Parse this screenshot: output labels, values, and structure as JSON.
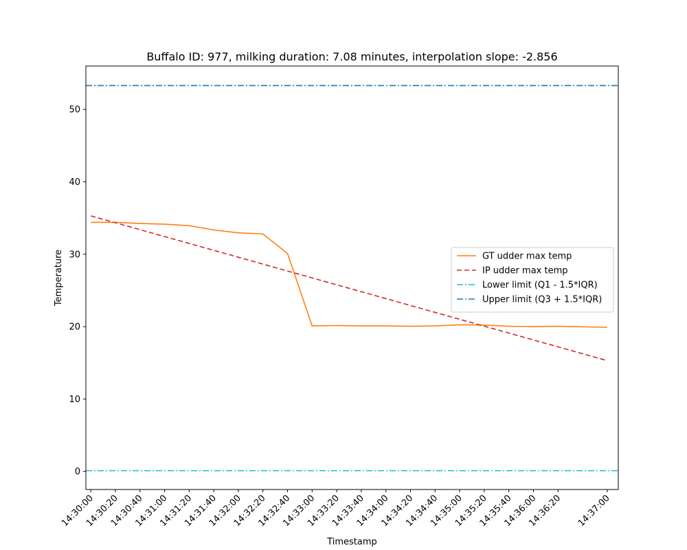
{
  "chart_data": {
    "type": "line",
    "title": "Buffalo ID: 977, milking duration: 7.08 minutes, interpolation slope: -2.856",
    "xlabel": "Timestamp",
    "ylabel": "Temperature",
    "xlim": [
      -4,
      429
    ],
    "ylim": [
      -2.5,
      56
    ],
    "y_ticks": [
      0,
      10,
      20,
      30,
      40,
      50
    ],
    "x_ticks": [
      {
        "t": 0,
        "label": "14:30:00"
      },
      {
        "t": 20,
        "label": "14:30:20"
      },
      {
        "t": 40,
        "label": "14:30:40"
      },
      {
        "t": 60,
        "label": "14:31:00"
      },
      {
        "t": 80,
        "label": "14:31:20"
      },
      {
        "t": 100,
        "label": "14:31:40"
      },
      {
        "t": 120,
        "label": "14:32:00"
      },
      {
        "t": 140,
        "label": "14:32:20"
      },
      {
        "t": 160,
        "label": "14:32:40"
      },
      {
        "t": 180,
        "label": "14:33:00"
      },
      {
        "t": 200,
        "label": "14:33:20"
      },
      {
        "t": 220,
        "label": "14:33:40"
      },
      {
        "t": 240,
        "label": "14:34:00"
      },
      {
        "t": 260,
        "label": "14:34:20"
      },
      {
        "t": 280,
        "label": "14:34:40"
      },
      {
        "t": 300,
        "label": "14:35:00"
      },
      {
        "t": 320,
        "label": "14:35:20"
      },
      {
        "t": 340,
        "label": "14:35:40"
      },
      {
        "t": 360,
        "label": "14:36:00"
      },
      {
        "t": 380,
        "label": "14:36:20"
      },
      {
        "t": 420,
        "label": "14:37:00"
      }
    ],
    "series": [
      {
        "name": "GT udder max temp",
        "color": "#ff7f0e",
        "style": "solid",
        "points": [
          [
            0,
            34.4
          ],
          [
            20,
            34.4
          ],
          [
            40,
            34.25
          ],
          [
            60,
            34.15
          ],
          [
            80,
            33.95
          ],
          [
            100,
            33.35
          ],
          [
            120,
            32.95
          ],
          [
            140,
            32.8
          ],
          [
            160,
            30.1
          ],
          [
            180,
            20.1
          ],
          [
            200,
            20.15
          ],
          [
            220,
            20.1
          ],
          [
            240,
            20.1
          ],
          [
            260,
            20.05
          ],
          [
            280,
            20.1
          ],
          [
            300,
            20.25
          ],
          [
            320,
            20.2
          ],
          [
            340,
            20.05
          ],
          [
            360,
            20.0
          ],
          [
            380,
            20.05
          ],
          [
            420,
            19.9
          ]
        ]
      },
      {
        "name": "IP udder max temp",
        "color": "#d62728",
        "style": "dashed",
        "points": [
          [
            0,
            35.3
          ],
          [
            420,
            15.3
          ]
        ]
      },
      {
        "name": "Lower limit (Q1 - 1.5*IQR)",
        "color": "#17becf",
        "style": "dashdot",
        "hline": 0.1
      },
      {
        "name": "Upper limit (Q3 + 1.5*IQR)",
        "color": "#1f77b4",
        "style": "dashdot",
        "hline": 53.3
      }
    ],
    "legend_position": "center-right",
    "grid": false
  }
}
